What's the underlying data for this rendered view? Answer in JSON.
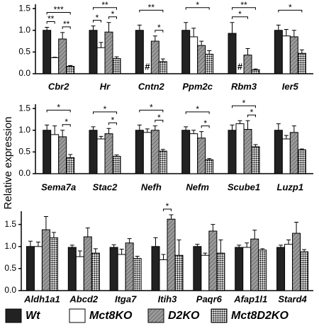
{
  "chart_data": {
    "type": "bar",
    "ylabel": "Relative expression",
    "series": [
      {
        "name": "Wt",
        "color": "#222222",
        "pattern": "solid"
      },
      {
        "name": "Mct8KO",
        "color": "#ffffff",
        "pattern": "solid"
      },
      {
        "name": "D2KO",
        "color": "#9a9a9a",
        "pattern": "hatch"
      },
      {
        "name": "Mct8D2KO",
        "color": "#000000",
        "pattern": "dots"
      }
    ],
    "panels": [
      {
        "categories": [
          "Cbr2",
          "Hr",
          "Cntn2",
          "Ppm2c",
          "Rbm3",
          "Ier5"
        ],
        "ylim": [
          0,
          1.6
        ],
        "yticks": [
          {
            "value": 0,
            "label": "0.0"
          },
          {
            "value": 0.5,
            "label": "0.5"
          },
          {
            "value": 1,
            "label": "1.0"
          },
          {
            "value": 1.5,
            "label": "1.5"
          }
        ],
        "series": [
          {
            "values": [
              1.0,
              1.0,
              1.0,
              1.0,
              0.93,
              1.0
            ],
            "errors": [
              0.07,
              0.1,
              0.12,
              0.18,
              0.25,
              0.12
            ]
          },
          {
            "values": [
              0.37,
              0.6,
              null,
              0.85,
              null,
              0.87
            ],
            "errors": [
              0.01,
              0.12,
              null,
              0.2,
              null,
              0.15
            ],
            "value_labels": [
              null,
              null,
              "#",
              null,
              "#",
              null
            ]
          },
          {
            "values": [
              0.8,
              0.96,
              0.75,
              0.65,
              0.43,
              0.85
            ],
            "errors": [
              0.15,
              0.22,
              0.12,
              0.1,
              0.15,
              0.15
            ]
          },
          {
            "values": [
              0.17,
              0.35,
              0.28,
              0.45,
              0.09,
              0.47
            ],
            "errors": [
              0.02,
              0.04,
              0.06,
              0.08,
              0.02,
              0.08
            ]
          }
        ],
        "significance": [
          {
            "category": 0,
            "from": 0,
            "to": 1,
            "label": "**"
          },
          {
            "category": 0,
            "from": 0,
            "to": 3,
            "label": "***"
          },
          {
            "category": 0,
            "from": 2,
            "to": 3,
            "label": "**"
          },
          {
            "category": 1,
            "from": 0,
            "to": 1,
            "label": "*"
          },
          {
            "category": 1,
            "from": 0,
            "to": 3,
            "label": "**"
          },
          {
            "category": 1,
            "from": 2,
            "to": 3,
            "label": "*"
          },
          {
            "category": 2,
            "from": 0,
            "to": 3,
            "label": "**"
          },
          {
            "category": 2,
            "from": 2,
            "to": 3,
            "label": "*"
          },
          {
            "category": 3,
            "from": 0,
            "to": 3,
            "label": "*"
          },
          {
            "category": 4,
            "from": 0,
            "to": 2,
            "label": "*"
          },
          {
            "category": 4,
            "from": 0,
            "to": 3,
            "label": "**"
          },
          {
            "category": 5,
            "from": 0,
            "to": 3,
            "label": "*"
          }
        ]
      },
      {
        "categories": [
          "Sema7a",
          "Stac2",
          "Nefh",
          "Nefm",
          "Scube1",
          "Luzp1"
        ],
        "ylim": [
          0,
          1.6
        ],
        "yticks": [
          {
            "value": 0,
            "label": "0.0"
          },
          {
            "value": 0.5,
            "label": "0.5"
          },
          {
            "value": 1,
            "label": "1.0"
          },
          {
            "value": 1.5,
            "label": "1.5"
          }
        ],
        "series": [
          {
            "values": [
              1.0,
              1.0,
              1.0,
              1.0,
              1.0,
              1.0
            ],
            "errors": [
              0.12,
              0.08,
              0.12,
              0.08,
              0.12,
              0.15
            ]
          },
          {
            "values": [
              0.9,
              0.8,
              0.95,
              0.92,
              1.15,
              0.8
            ],
            "errors": [
              0.2,
              0.06,
              0.08,
              0.08,
              0.07,
              0.08
            ]
          },
          {
            "values": [
              0.85,
              0.92,
              1.0,
              0.82,
              1.02,
              0.95
            ],
            "errors": [
              0.15,
              0.12,
              0.1,
              0.15,
              0.2,
              0.15
            ]
          },
          {
            "values": [
              0.37,
              0.4,
              0.52,
              0.32,
              0.62,
              0.55
            ],
            "errors": [
              0.07,
              0.03,
              0.04,
              0.03,
              0.05,
              0.02
            ]
          }
        ],
        "significance": [
          {
            "category": 0,
            "from": 0,
            "to": 3,
            "label": "*"
          },
          {
            "category": 0,
            "from": 2,
            "to": 3,
            "label": "*"
          },
          {
            "category": 1,
            "from": 0,
            "to": 3,
            "label": "*"
          },
          {
            "category": 1,
            "from": 2,
            "to": 3,
            "label": "*"
          },
          {
            "category": 2,
            "from": 0,
            "to": 3,
            "label": "*"
          },
          {
            "category": 2,
            "from": 2,
            "to": 3,
            "label": "*"
          },
          {
            "category": 3,
            "from": 0,
            "to": 3,
            "label": "*"
          },
          {
            "category": 3,
            "from": 2,
            "to": 3,
            "label": "*"
          },
          {
            "category": 4,
            "from": 0,
            "to": 3,
            "label": "*"
          },
          {
            "category": 4,
            "from": 2,
            "to": 3,
            "label": "*"
          }
        ]
      },
      {
        "categories": [
          "Aldh1a1",
          "Abcd2",
          "Itga7",
          "Itih3",
          "Paqr6",
          "Afap1l1",
          "Stard4"
        ],
        "ylim": [
          0,
          1.8
        ],
        "yticks": [
          {
            "value": 0,
            "label": "0.0"
          },
          {
            "value": 0.5,
            "label": "0.5"
          },
          {
            "value": 1,
            "label": "1.0"
          },
          {
            "value": 1.5,
            "label": "1.5"
          }
        ],
        "series": [
          {
            "values": [
              1.0,
              0.98,
              0.98,
              1.0,
              1.0,
              0.98,
              0.98
            ],
            "errors": [
              0.12,
              0.05,
              0.06,
              0.2,
              0.05,
              0.05,
              0.05
            ]
          },
          {
            "values": [
              1.0,
              0.77,
              0.82,
              0.7,
              0.8,
              0.98,
              1.05
            ],
            "errors": [
              0.1,
              0.13,
              0.12,
              0.12,
              0.05,
              0.1,
              0.1
            ]
          },
          {
            "values": [
              1.38,
              1.22,
              1.08,
              1.62,
              1.35,
              1.17,
              1.3
            ],
            "errors": [
              0.3,
              0.2,
              0.1,
              0.1,
              0.15,
              0.2,
              0.25
            ]
          },
          {
            "values": [
              1.2,
              0.85,
              0.73,
              0.8,
              0.85,
              0.92,
              0.88
            ],
            "errors": [
              0.12,
              0.1,
              0.05,
              0.35,
              0.3,
              0.03,
              0.05
            ]
          }
        ],
        "significance": [
          {
            "category": 3,
            "from": 1,
            "to": 2,
            "label": "*"
          }
        ]
      }
    ]
  }
}
